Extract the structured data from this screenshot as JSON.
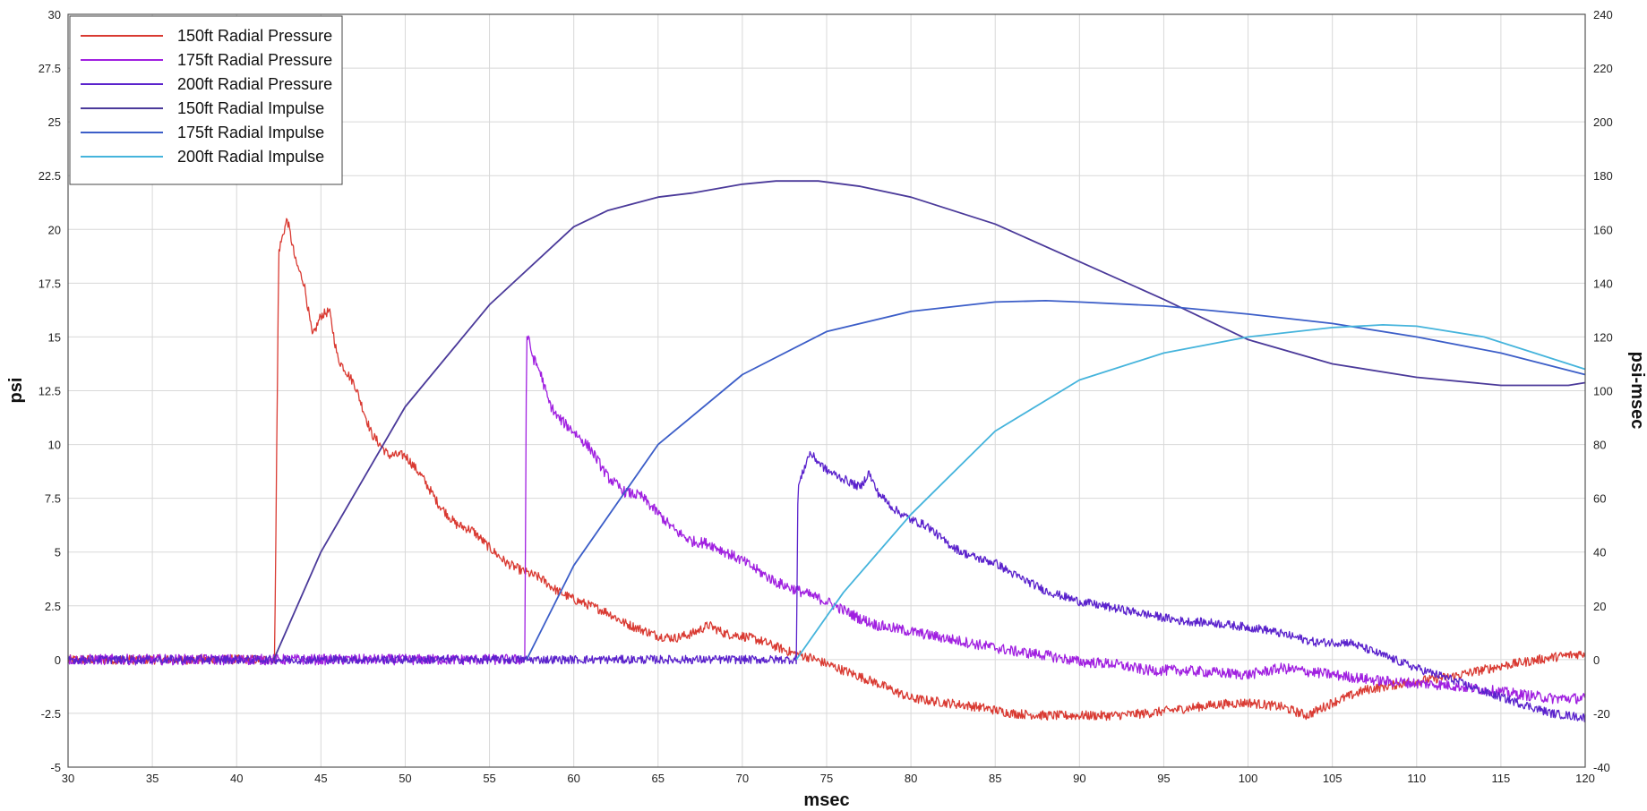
{
  "chart_data": {
    "type": "line",
    "title": "",
    "xlabel": "msec",
    "ylabel": "psi",
    "y2label": "psi-msec",
    "xlim": [
      30,
      120
    ],
    "ylim": [
      -5,
      30
    ],
    "y2lim": [
      -40,
      240
    ],
    "grid": true,
    "legend_position": "top-left",
    "x_ticks": [
      "30",
      "35",
      "40",
      "45",
      "50",
      "55",
      "60",
      "65",
      "70",
      "75",
      "80",
      "85",
      "90",
      "95",
      "100",
      "105",
      "110",
      "115",
      "120"
    ],
    "y_ticks": [
      "-5",
      "-2.5",
      "0",
      "2.5",
      "5",
      "7.5",
      "10",
      "12.5",
      "15",
      "17.5",
      "20",
      "22.5",
      "25",
      "27.5",
      "30"
    ],
    "y2_ticks": [
      "-40",
      "-20",
      "0",
      "20",
      "40",
      "60",
      "80",
      "100",
      "120",
      "140",
      "160",
      "180",
      "200",
      "220",
      "240"
    ],
    "series": [
      {
        "name": "150ft Radial Pressure",
        "axis": "left",
        "color": "#d93a32",
        "noise": 0.22,
        "points": [
          [
            30,
            0
          ],
          [
            42,
            0
          ],
          [
            42.25,
            0
          ],
          [
            42.5,
            19
          ],
          [
            43,
            20.5
          ],
          [
            43.5,
            18.5
          ],
          [
            44,
            17.5
          ],
          [
            44.5,
            15
          ],
          [
            45,
            16
          ],
          [
            45.5,
            16.2
          ],
          [
            46,
            14
          ],
          [
            47,
            12.8
          ],
          [
            48,
            10.5
          ],
          [
            49,
            9.5
          ],
          [
            50,
            9.5
          ],
          [
            51,
            8.5
          ],
          [
            52,
            7.2
          ],
          [
            53,
            6.3
          ],
          [
            54,
            6
          ],
          [
            55,
            5.2
          ],
          [
            56,
            4.5
          ],
          [
            57,
            4.1
          ],
          [
            58,
            3.8
          ],
          [
            59,
            3.2
          ],
          [
            60,
            2.8
          ],
          [
            61,
            2.5
          ],
          [
            62,
            2.2
          ],
          [
            63,
            1.7
          ],
          [
            64,
            1.4
          ],
          [
            65,
            1.1
          ],
          [
            66,
            1
          ],
          [
            67,
            1.2
          ],
          [
            68,
            1.6
          ],
          [
            69,
            1.2
          ],
          [
            70,
            1.1
          ],
          [
            71,
            0.9
          ],
          [
            72,
            0.6
          ],
          [
            73,
            0.3
          ],
          [
            74,
            0.1
          ],
          [
            76,
            -0.5
          ],
          [
            78,
            -1.1
          ],
          [
            80,
            -1.8
          ],
          [
            82,
            -2
          ],
          [
            84,
            -2.2
          ],
          [
            86,
            -2.5
          ],
          [
            88,
            -2.6
          ],
          [
            90,
            -2.6
          ],
          [
            92,
            -2.6
          ],
          [
            94,
            -2.5
          ],
          [
            96,
            -2.3
          ],
          [
            98,
            -2.1
          ],
          [
            100,
            -2
          ],
          [
            102,
            -2.2
          ],
          [
            103.5,
            -2.6
          ],
          [
            105,
            -2
          ],
          [
            107,
            -1.4
          ],
          [
            110,
            -1
          ],
          [
            112,
            -0.8
          ],
          [
            115,
            -0.3
          ],
          [
            118,
            0.1
          ],
          [
            120,
            0.3
          ]
        ]
      },
      {
        "name": "175ft Radial Pressure",
        "axis": "left",
        "color": "#a020e0",
        "noise": 0.25,
        "points": [
          [
            30,
            0
          ],
          [
            57.1,
            0
          ],
          [
            57.2,
            15.2
          ],
          [
            57.6,
            14
          ],
          [
            58,
            13.4
          ],
          [
            58.5,
            12
          ],
          [
            59,
            11.3
          ],
          [
            60,
            10.6
          ],
          [
            61,
            9.8
          ],
          [
            62,
            8.5
          ],
          [
            63,
            7.8
          ],
          [
            64,
            7.6
          ],
          [
            65,
            6.8
          ],
          [
            66,
            6
          ],
          [
            67,
            5.5
          ],
          [
            68,
            5.4
          ],
          [
            69,
            5
          ],
          [
            70,
            4.6
          ],
          [
            71,
            4.1
          ],
          [
            72,
            3.6
          ],
          [
            73,
            3.3
          ],
          [
            74,
            3
          ],
          [
            75,
            2.7
          ],
          [
            76,
            2.3
          ],
          [
            77,
            1.9
          ],
          [
            78,
            1.6
          ],
          [
            80,
            1.3
          ],
          [
            82,
            1
          ],
          [
            84,
            0.7
          ],
          [
            86,
            0.4
          ],
          [
            88,
            0.2
          ],
          [
            90,
            -0.1
          ],
          [
            92,
            -0.2
          ],
          [
            94,
            -0.5
          ],
          [
            96,
            -0.5
          ],
          [
            98,
            -0.6
          ],
          [
            100,
            -0.7
          ],
          [
            102,
            -0.4
          ],
          [
            104,
            -0.6
          ],
          [
            106,
            -0.8
          ],
          [
            108,
            -1
          ],
          [
            110,
            -1.1
          ],
          [
            112,
            -1.2
          ],
          [
            114,
            -1.4
          ],
          [
            116,
            -1.6
          ],
          [
            118,
            -1.8
          ],
          [
            120,
            -1.8
          ]
        ]
      },
      {
        "name": "200ft Radial Pressure",
        "axis": "left",
        "color": "#5a22cc",
        "noise": 0.2,
        "points": [
          [
            30,
            0
          ],
          [
            73.2,
            0
          ],
          [
            73.3,
            8
          ],
          [
            73.8,
            9.2
          ],
          [
            74,
            9.6
          ],
          [
            75,
            8.8
          ],
          [
            76,
            8.4
          ],
          [
            77,
            8
          ],
          [
            77.5,
            8.7
          ],
          [
            78,
            7.8
          ],
          [
            79,
            7
          ],
          [
            80,
            6.5
          ],
          [
            81,
            6.2
          ],
          [
            82,
            5.5
          ],
          [
            83,
            5
          ],
          [
            84,
            4.7
          ],
          [
            85,
            4.5
          ],
          [
            86,
            4
          ],
          [
            87,
            3.6
          ],
          [
            88,
            3.2
          ],
          [
            90,
            2.7
          ],
          [
            92,
            2.4
          ],
          [
            94,
            2.1
          ],
          [
            96,
            1.8
          ],
          [
            98,
            1.7
          ],
          [
            100,
            1.5
          ],
          [
            101,
            1.4
          ],
          [
            102,
            1.2
          ],
          [
            104,
            0.8
          ],
          [
            106,
            0.8
          ],
          [
            108,
            0.2
          ],
          [
            110,
            -0.4
          ],
          [
            112,
            -0.9
          ],
          [
            114,
            -1.5
          ],
          [
            116,
            -2
          ],
          [
            118,
            -2.5
          ],
          [
            120,
            -2.7
          ]
        ]
      },
      {
        "name": "150ft Radial Impulse",
        "axis": "right",
        "color": "#4b3a9a",
        "noise": 0,
        "points": [
          [
            42.2,
            0
          ],
          [
            45,
            40
          ],
          [
            50,
            94
          ],
          [
            55,
            132
          ],
          [
            60,
            161
          ],
          [
            62,
            167
          ],
          [
            65,
            172
          ],
          [
            67,
            173.5
          ],
          [
            70,
            176.8
          ],
          [
            72,
            178
          ],
          [
            74.5,
            178
          ],
          [
            77,
            176
          ],
          [
            80,
            172
          ],
          [
            85,
            162
          ],
          [
            90,
            148
          ],
          [
            95,
            134
          ],
          [
            100,
            119
          ],
          [
            105,
            110
          ],
          [
            110,
            105
          ],
          [
            115,
            102
          ],
          [
            119,
            102
          ],
          [
            120,
            103
          ]
        ]
      },
      {
        "name": "175ft Radial Impulse",
        "axis": "right",
        "color": "#3c5ec8",
        "noise": 0,
        "points": [
          [
            57.2,
            0
          ],
          [
            60,
            35
          ],
          [
            65,
            80
          ],
          [
            70,
            106
          ],
          [
            75,
            122
          ],
          [
            80,
            129.5
          ],
          [
            85,
            133
          ],
          [
            88,
            133.5
          ],
          [
            90,
            133
          ],
          [
            95,
            131.5
          ],
          [
            100,
            128.5
          ],
          [
            105,
            125
          ],
          [
            110,
            120
          ],
          [
            115,
            114
          ],
          [
            120,
            106
          ]
        ]
      },
      {
        "name": "200ft Radial Impulse",
        "axis": "right",
        "color": "#45b4dc",
        "noise": 0,
        "points": [
          [
            73.2,
            0
          ],
          [
            76,
            25
          ],
          [
            80,
            54
          ],
          [
            85,
            85
          ],
          [
            90,
            104
          ],
          [
            95,
            114
          ],
          [
            100,
            120
          ],
          [
            105,
            123.5
          ],
          [
            108,
            124.5
          ],
          [
            110,
            124
          ],
          [
            114,
            120
          ],
          [
            117,
            114
          ],
          [
            120,
            108
          ]
        ]
      }
    ]
  }
}
